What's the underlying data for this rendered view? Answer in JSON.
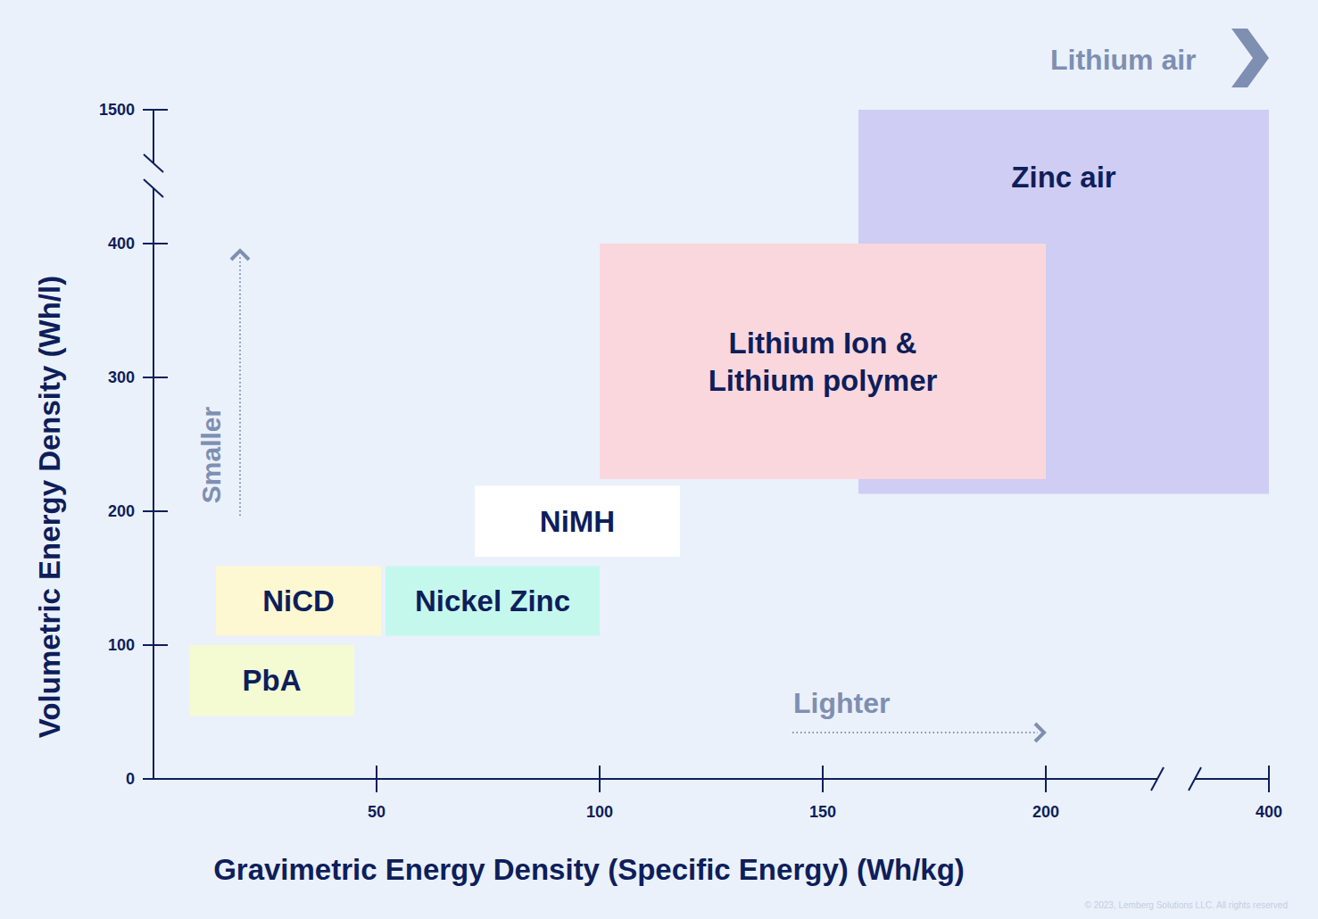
{
  "chart_data": {
    "type": "range",
    "x_label": "Gravimetric Energy Density (Specific Energy) (Wh/kg)",
    "y_label": "Volumetric Energy Density (Wh/l)",
    "xlim": [
      0,
      400
    ],
    "ylim": [
      0,
      1500
    ],
    "xticks": [
      50,
      100,
      150,
      200,
      400
    ],
    "yticks": [
      0,
      100,
      200,
      300,
      400,
      1500
    ],
    "grid": false,
    "series": [
      {
        "name": "PbA",
        "color": "#f4fad2",
        "x": [
          8,
          45
        ],
        "values": [
          47,
          100
        ]
      },
      {
        "name": "NiCD",
        "color": "#fdf8d2",
        "x": [
          14,
          51
        ],
        "values": [
          107,
          159
        ]
      },
      {
        "name": "Nickel Zinc",
        "color": "#c4f8ec",
        "x": [
          52,
          100
        ],
        "values": [
          107,
          159
        ]
      },
      {
        "name": "NiMH",
        "color": "#ffffff",
        "x": [
          72,
          118
        ],
        "values": [
          166,
          219
        ]
      },
      {
        "name": "Zinc air",
        "color": "#cfcdf3",
        "x": [
          158,
          400
        ],
        "values": [
          213,
          1500
        ]
      },
      {
        "name": "Lithium Ion & Lithium polymer",
        "color": "#f9d7dc",
        "x": [
          100,
          200
        ],
        "values": [
          224,
          400
        ]
      }
    ],
    "annotations": [
      "Smaller",
      "Lighter",
      "Lithium air"
    ],
    "credit": "© 2023, Lemberg Solutions LLC. All rights reserved"
  }
}
